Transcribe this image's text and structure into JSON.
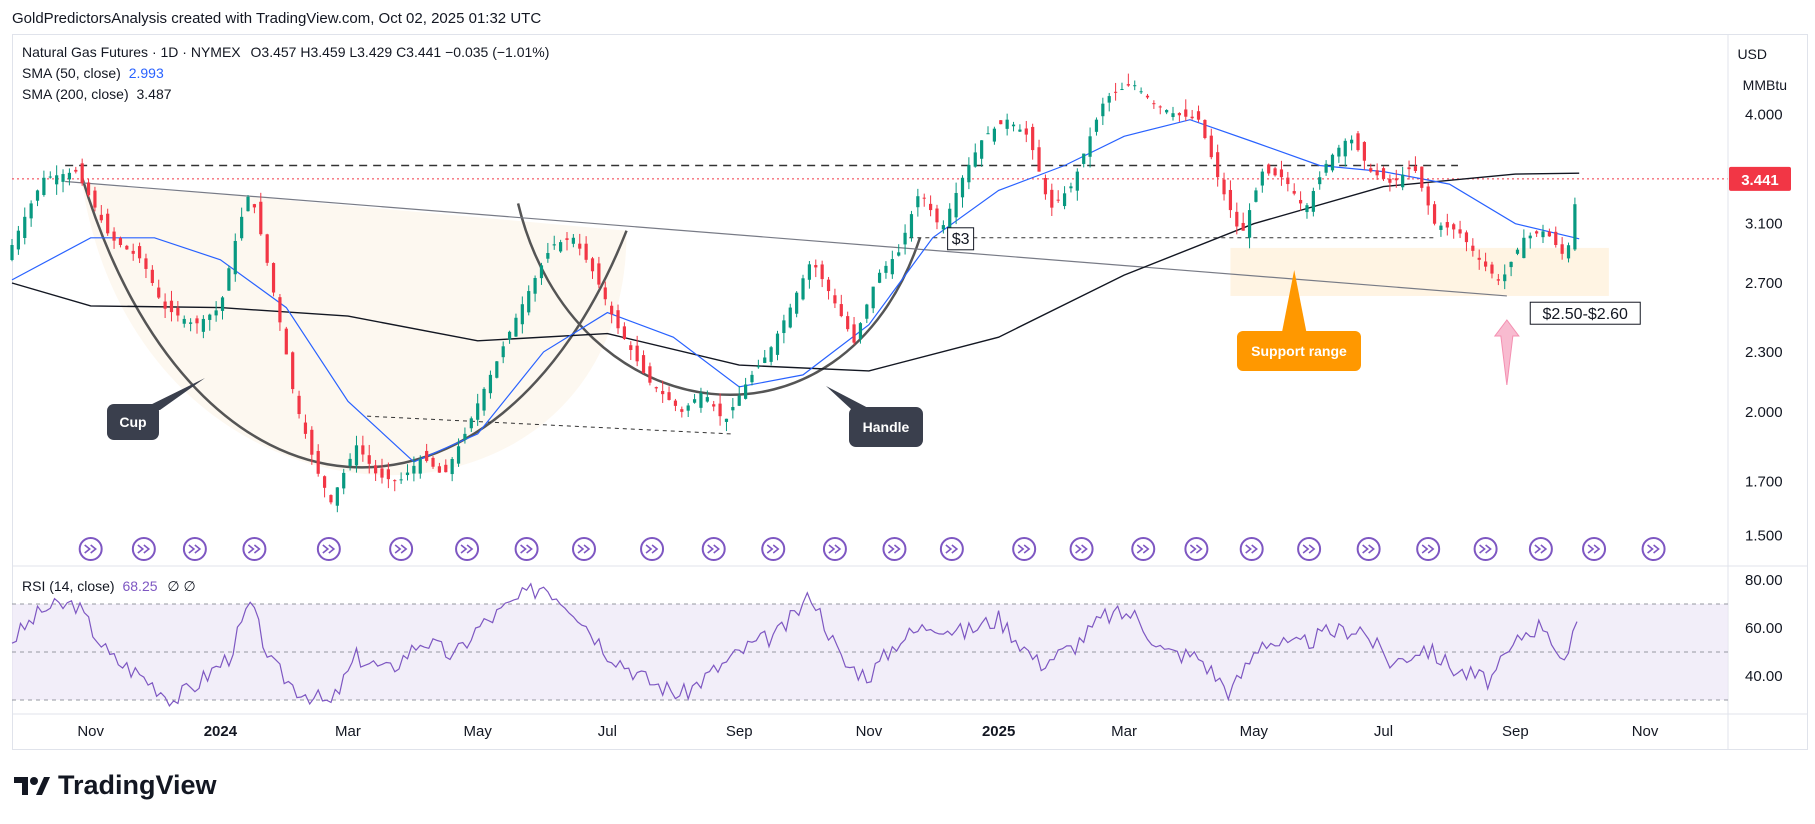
{
  "header": {
    "text": "GoldPredictorsAnalysis created with TradingView.com, Oct 02, 2025 01:32 UTC"
  },
  "legend": {
    "symbol": "Natural Gas Futures · 1D · NYMEX",
    "ohlc": "O3.457  H3.459  L3.429  C3.441  −0.035 (−1.01%)",
    "sma50_label": "SMA (50, close)",
    "sma50_value": "2.993",
    "sma200_label": "SMA (200, close)",
    "sma200_value": "3.487"
  },
  "rsi_legend": {
    "label": "RSI (14, close)",
    "value": "68.25",
    "extra": "∅  ∅"
  },
  "units": {
    "currency": "USD",
    "unit": "MMBtu"
  },
  "brand": {
    "name": "TradingView"
  },
  "annotations": {
    "cup": "Cup",
    "handle": "Handle",
    "support_range": "Support range",
    "level_3": "$3",
    "range_label": "$2.50-$2.60",
    "last_price": "3.441"
  },
  "colors": {
    "up": "#089981",
    "down": "#f23645",
    "sma50": "#2962ff",
    "sma200": "#131722",
    "rsi": "#7e57c2",
    "support_fill": "#fff3e0",
    "callout": "#ff9800",
    "cup_fill": "#fdf8f0"
  },
  "chart_data": [
    {
      "type": "candlestick",
      "title": "Natural Gas Futures · 1D · NYMEX",
      "ylim": [
        1.4,
        4.8
      ],
      "y_scale": "log",
      "y_ticks": [
        "4.000",
        "3.100",
        "2.700",
        "2.300",
        "2.000",
        "1.700",
        "1.500"
      ],
      "y_tick_values": [
        4.0,
        3.1,
        2.7,
        2.3,
        2.0,
        1.7,
        1.5
      ],
      "x_ticks": [
        "Nov",
        "2024",
        "Mar",
        "May",
        "Jul",
        "Sep",
        "Nov",
        "2025",
        "Mar",
        "May",
        "Jul",
        "Sep",
        "Nov"
      ],
      "x_tick_dates": [
        "2023-11-01",
        "2024-01-01",
        "2024-03-01",
        "2024-05-01",
        "2024-07-01",
        "2024-09-01",
        "2024-11-01",
        "2025-01-01",
        "2025-03-01",
        "2025-05-01",
        "2025-07-01",
        "2025-09-01",
        "2025-11-01"
      ],
      "date_range": [
        "2023-09-25",
        "2025-12-10"
      ],
      "close_path": [
        [
          "2023-09-25",
          2.95
        ],
        [
          "2023-10-10",
          3.45
        ],
        [
          "2023-10-25",
          3.5
        ],
        [
          "2023-11-10",
          3.0
        ],
        [
          "2023-11-25",
          2.85
        ],
        [
          "2023-12-05",
          2.55
        ],
        [
          "2023-12-20",
          2.45
        ],
        [
          "2024-01-01",
          2.55
        ],
        [
          "2024-01-10",
          3.1
        ],
        [
          "2024-01-15",
          3.35
        ],
        [
          "2024-01-25",
          2.7
        ],
        [
          "2024-02-05",
          2.05
        ],
        [
          "2024-02-15",
          1.75
        ],
        [
          "2024-02-22",
          1.62
        ],
        [
          "2024-03-05",
          1.85
        ],
        [
          "2024-03-15",
          1.72
        ],
        [
          "2024-03-25",
          1.7
        ],
        [
          "2024-04-05",
          1.8
        ],
        [
          "2024-04-15",
          1.72
        ],
        [
          "2024-04-25",
          1.9
        ],
        [
          "2024-05-10",
          2.25
        ],
        [
          "2024-05-25",
          2.65
        ],
        [
          "2024-06-05",
          2.95
        ],
        [
          "2024-06-15",
          3.0
        ],
        [
          "2024-06-25",
          2.75
        ],
        [
          "2024-07-05",
          2.45
        ],
        [
          "2024-07-20",
          2.15
        ],
        [
          "2024-08-05",
          2.0
        ],
        [
          "2024-08-15",
          2.1
        ],
        [
          "2024-08-25",
          1.95
        ],
        [
          "2024-09-05",
          2.15
        ],
        [
          "2024-09-15",
          2.3
        ],
        [
          "2024-09-25",
          2.55
        ],
        [
          "2024-10-05",
          2.85
        ],
        [
          "2024-10-15",
          2.6
        ],
        [
          "2024-10-25",
          2.35
        ],
        [
          "2024-11-05",
          2.75
        ],
        [
          "2024-11-15",
          2.9
        ],
        [
          "2024-11-25",
          3.35
        ],
        [
          "2024-12-05",
          3.05
        ],
        [
          "2024-12-15",
          3.45
        ],
        [
          "2024-12-25",
          3.8
        ],
        [
          "2025-01-05",
          3.95
        ],
        [
          "2025-01-15",
          3.8
        ],
        [
          "2025-01-25",
          3.2
        ],
        [
          "2025-02-05",
          3.4
        ],
        [
          "2025-02-20",
          4.15
        ],
        [
          "2025-03-05",
          4.3
        ],
        [
          "2025-03-15",
          4.1
        ],
        [
          "2025-03-25",
          4.0
        ],
        [
          "2025-04-05",
          3.95
        ],
        [
          "2025-04-15",
          3.4
        ],
        [
          "2025-04-25",
          3.0
        ],
        [
          "2025-05-05",
          3.5
        ],
        [
          "2025-05-15",
          3.45
        ],
        [
          "2025-05-25",
          3.2
        ],
        [
          "2025-06-05",
          3.6
        ],
        [
          "2025-06-15",
          3.8
        ],
        [
          "2025-06-25",
          3.5
        ],
        [
          "2025-07-05",
          3.4
        ],
        [
          "2025-07-15",
          3.55
        ],
        [
          "2025-07-25",
          3.1
        ],
        [
          "2025-08-05",
          3.05
        ],
        [
          "2025-08-15",
          2.85
        ],
        [
          "2025-08-25",
          2.7
        ],
        [
          "2025-09-05",
          3.0
        ],
        [
          "2025-09-15",
          3.05
        ],
        [
          "2025-09-25",
          2.85
        ],
        [
          "2025-10-01",
          3.441
        ]
      ],
      "sma50_path": [
        [
          "2023-09-25",
          2.72
        ],
        [
          "2023-11-01",
          3.0
        ],
        [
          "2023-12-01",
          3.0
        ],
        [
          "2024-01-01",
          2.85
        ],
        [
          "2024-02-01",
          2.55
        ],
        [
          "2024-03-01",
          2.05
        ],
        [
          "2024-04-01",
          1.78
        ],
        [
          "2024-05-01",
          1.9
        ],
        [
          "2024-06-01",
          2.3
        ],
        [
          "2024-07-01",
          2.52
        ],
        [
          "2024-08-01",
          2.38
        ],
        [
          "2024-09-01",
          2.12
        ],
        [
          "2024-10-01",
          2.18
        ],
        [
          "2024-11-01",
          2.45
        ],
        [
          "2024-12-01",
          3.0
        ],
        [
          "2025-01-01",
          3.35
        ],
        [
          "2025-02-01",
          3.55
        ],
        [
          "2025-03-01",
          3.8
        ],
        [
          "2025-04-01",
          3.95
        ],
        [
          "2025-05-01",
          3.75
        ],
        [
          "2025-06-01",
          3.55
        ],
        [
          "2025-07-01",
          3.5
        ],
        [
          "2025-08-01",
          3.4
        ],
        [
          "2025-09-01",
          3.1
        ],
        [
          "2025-10-01",
          2.993
        ]
      ],
      "sma200_path": [
        [
          "2023-09-25",
          2.7
        ],
        [
          "2023-11-01",
          2.56
        ],
        [
          "2024-01-01",
          2.55
        ],
        [
          "2024-03-01",
          2.5
        ],
        [
          "2024-05-01",
          2.36
        ],
        [
          "2024-07-01",
          2.4
        ],
        [
          "2024-09-01",
          2.23
        ],
        [
          "2024-11-01",
          2.2
        ],
        [
          "2025-01-01",
          2.38
        ],
        [
          "2025-03-01",
          2.75
        ],
        [
          "2025-05-01",
          3.1
        ],
        [
          "2025-07-01",
          3.38
        ],
        [
          "2025-09-01",
          3.48
        ],
        [
          "2025-10-01",
          3.487
        ]
      ],
      "last_price": 3.441,
      "levels": {
        "neckline": 3.55,
        "level_3": 3.0,
        "support_low": 2.5,
        "support_high": 2.6
      }
    },
    {
      "type": "line",
      "title": "RSI (14, close)",
      "ylim": [
        25,
        85
      ],
      "y_ticks": [
        "80.00",
        "60.00",
        "40.00"
      ],
      "y_tick_values": [
        80,
        60,
        40
      ],
      "band": [
        30,
        70
      ],
      "last_value": 68.25,
      "path": [
        [
          "2023-09-25",
          55
        ],
        [
          "2023-10-10",
          68
        ],
        [
          "2023-10-25",
          70
        ],
        [
          "2023-11-10",
          48
        ],
        [
          "2023-11-25",
          40
        ],
        [
          "2023-12-10",
          30
        ],
        [
          "2023-12-20",
          36
        ],
        [
          "2024-01-05",
          48
        ],
        [
          "2024-01-15",
          70
        ],
        [
          "2024-01-25",
          45
        ],
        [
          "2024-02-05",
          35
        ],
        [
          "2024-02-22",
          28
        ],
        [
          "2024-03-05",
          48
        ],
        [
          "2024-03-20",
          42
        ],
        [
          "2024-04-05",
          55
        ],
        [
          "2024-04-20",
          48
        ],
        [
          "2024-05-01",
          60
        ],
        [
          "2024-05-20",
          72
        ],
        [
          "2024-06-01",
          78
        ],
        [
          "2024-06-15",
          68
        ],
        [
          "2024-07-01",
          50
        ],
        [
          "2024-07-20",
          38
        ],
        [
          "2024-08-05",
          32
        ],
        [
          "2024-08-20",
          42
        ],
        [
          "2024-09-05",
          52
        ],
        [
          "2024-09-20",
          58
        ],
        [
          "2024-10-05",
          74
        ],
        [
          "2024-10-20",
          45
        ],
        [
          "2024-11-01",
          40
        ],
        [
          "2024-11-15",
          55
        ],
        [
          "2024-12-01",
          62
        ],
        [
          "2024-12-15",
          58
        ],
        [
          "2025-01-01",
          64
        ],
        [
          "2025-01-20",
          45
        ],
        [
          "2025-02-05",
          52
        ],
        [
          "2025-02-20",
          65
        ],
        [
          "2025-03-05",
          66
        ],
        [
          "2025-03-20",
          50
        ],
        [
          "2025-04-05",
          48
        ],
        [
          "2025-04-20",
          33
        ],
        [
          "2025-05-05",
          55
        ],
        [
          "2025-05-20",
          52
        ],
        [
          "2025-06-05",
          58
        ],
        [
          "2025-06-20",
          60
        ],
        [
          "2025-07-05",
          45
        ],
        [
          "2025-07-20",
          52
        ],
        [
          "2025-08-05",
          42
        ],
        [
          "2025-08-20",
          38
        ],
        [
          "2025-09-05",
          58
        ],
        [
          "2025-09-15",
          62
        ],
        [
          "2025-09-25",
          42
        ],
        [
          "2025-10-01",
          68.25
        ]
      ]
    }
  ]
}
